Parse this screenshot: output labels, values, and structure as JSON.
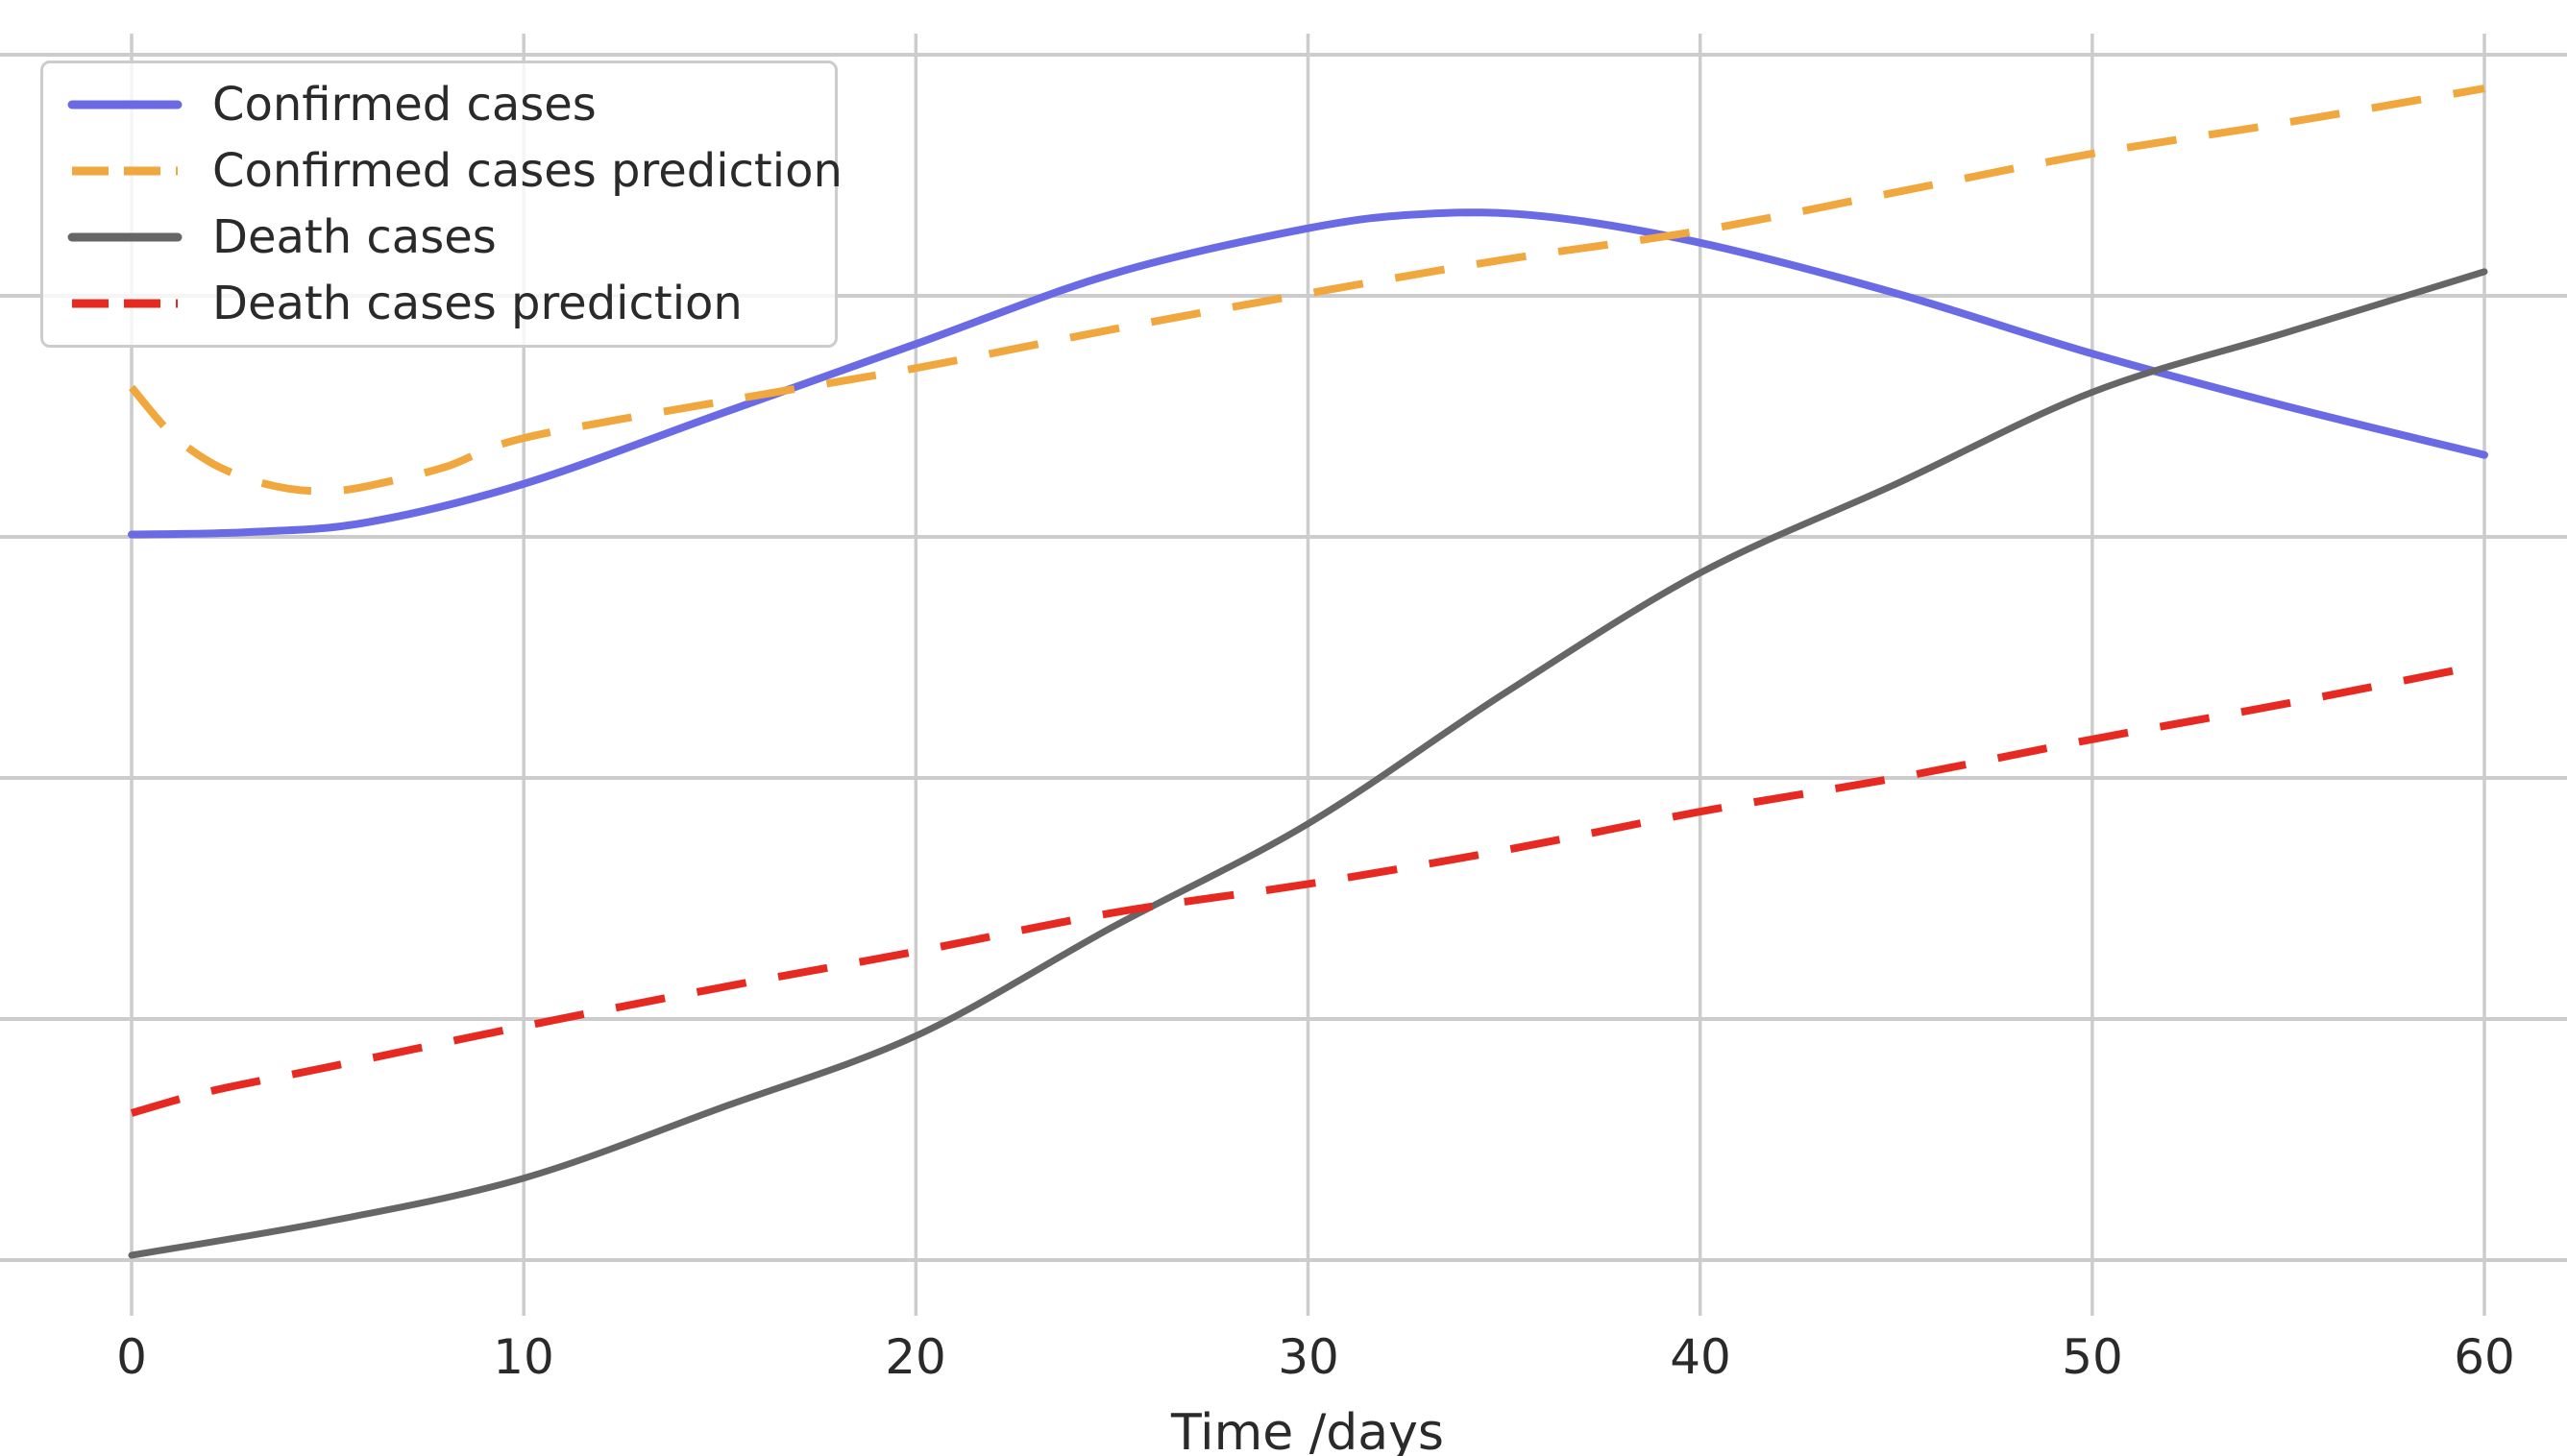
{
  "figure": {
    "xlabel": "Time /days",
    "x_tick_labels": [
      "0",
      "10",
      "20",
      "30",
      "40",
      "50",
      "60"
    ],
    "y_tick_labels_visible": false,
    "background_color": "#ffffff",
    "grid_color": "#cccccc",
    "text_color": "#2a2a2a"
  },
  "legend": {
    "position": "upper left",
    "items": [
      {
        "label": "Confirmed cases",
        "color": "#6a6ae4",
        "dash": false
      },
      {
        "label": "Confirmed cases prediction",
        "color": "#efa73e",
        "dash": true
      },
      {
        "label": "Death cases",
        "color": "#666666",
        "dash": false
      },
      {
        "label": "Death cases prediction",
        "color": "#e62a22",
        "dash": true
      }
    ]
  },
  "chart_data": {
    "type": "line",
    "title": "",
    "xlabel": "Time /days",
    "ylabel": "",
    "x_range": [
      0,
      60
    ],
    "x_ticks": [
      0,
      10,
      20,
      30,
      40,
      50,
      60
    ],
    "grid": true,
    "legend_position": "upper left",
    "y_axis_note": "y-axis tick labels are cropped out of the screenshot; y values below are in grid units where 0 = bottom visible gridline and 1 = one horizontal gridline spacing",
    "y_gridline_units_visible": [
      0,
      1,
      2,
      3,
      4,
      5
    ],
    "series": [
      {
        "name": "Confirmed cases",
        "color": "#6a6ae4",
        "style": "solid",
        "points": [
          [
            0,
            3.01
          ],
          [
            3,
            3.02
          ],
          [
            6,
            3.06
          ],
          [
            10,
            3.22
          ],
          [
            15,
            3.51
          ],
          [
            20,
            3.8
          ],
          [
            25,
            4.09
          ],
          [
            30,
            4.28
          ],
          [
            33,
            4.34
          ],
          [
            36,
            4.33
          ],
          [
            40,
            4.22
          ],
          [
            45,
            4.01
          ],
          [
            50,
            3.76
          ],
          [
            55,
            3.54
          ],
          [
            60,
            3.34
          ]
        ]
      },
      {
        "name": "Confirmed cases prediction",
        "color": "#efa73e",
        "style": "dashed",
        "points": [
          [
            0,
            3.62
          ],
          [
            1,
            3.43
          ],
          [
            2,
            3.31
          ],
          [
            3,
            3.24
          ],
          [
            4,
            3.2
          ],
          [
            5,
            3.19
          ],
          [
            6,
            3.21
          ],
          [
            8,
            3.29
          ],
          [
            10,
            3.41
          ],
          [
            15,
            3.56
          ],
          [
            20,
            3.7
          ],
          [
            25,
            3.86
          ],
          [
            30,
            4.01
          ],
          [
            35,
            4.15
          ],
          [
            40,
            4.27
          ],
          [
            45,
            4.43
          ],
          [
            50,
            4.59
          ],
          [
            55,
            4.72
          ],
          [
            60,
            4.86
          ]
        ]
      },
      {
        "name": "Death cases",
        "color": "#666666",
        "style": "solid",
        "points": [
          [
            0,
            0.02
          ],
          [
            5,
            0.16
          ],
          [
            10,
            0.34
          ],
          [
            15,
            0.63
          ],
          [
            20,
            0.93
          ],
          [
            25,
            1.38
          ],
          [
            30,
            1.81
          ],
          [
            35,
            2.35
          ],
          [
            40,
            2.85
          ],
          [
            45,
            3.22
          ],
          [
            50,
            3.6
          ],
          [
            55,
            3.85
          ],
          [
            60,
            4.1
          ]
        ]
      },
      {
        "name": "Death cases prediction",
        "color": "#e62a22",
        "style": "dashed",
        "points": [
          [
            0,
            0.61
          ],
          [
            2,
            0.7
          ],
          [
            5,
            0.8
          ],
          [
            10,
            0.97
          ],
          [
            15,
            1.13
          ],
          [
            20,
            1.28
          ],
          [
            25,
            1.44
          ],
          [
            30,
            1.56
          ],
          [
            35,
            1.7
          ],
          [
            40,
            1.86
          ],
          [
            45,
            2.0
          ],
          [
            50,
            2.16
          ],
          [
            55,
            2.31
          ],
          [
            60,
            2.47
          ]
        ]
      }
    ]
  }
}
